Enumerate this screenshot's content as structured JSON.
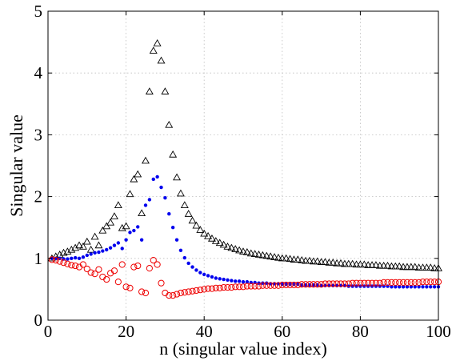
{
  "chart_data": {
    "type": "scatter",
    "title": "",
    "xlabel": "n (singular value index)",
    "ylabel": "Singular value",
    "xlim": [
      0,
      100
    ],
    "ylim": [
      0,
      5
    ],
    "xticks": [
      0,
      20,
      40,
      60,
      80,
      100
    ],
    "yticks": [
      0,
      1,
      2,
      3,
      4,
      5
    ],
    "grid": true,
    "series": [
      {
        "marker": "triangle",
        "color": "#000000",
        "x": [
          1,
          2,
          3,
          4,
          5,
          6,
          7,
          8,
          9,
          10,
          11,
          12,
          13,
          14,
          15,
          16,
          17,
          18,
          19,
          20,
          21,
          22,
          23,
          24,
          25,
          26,
          27,
          28,
          29,
          30,
          31,
          32,
          33,
          34,
          35,
          36,
          37,
          38,
          39,
          40,
          41,
          42,
          43,
          44,
          45,
          46,
          47,
          48,
          49,
          50,
          51,
          52,
          53,
          54,
          55,
          56,
          57,
          58,
          59,
          60,
          61,
          62,
          63,
          64,
          65,
          66,
          67,
          68,
          69,
          70,
          71,
          72,
          73,
          74,
          75,
          76,
          77,
          78,
          79,
          80,
          81,
          82,
          83,
          84,
          85,
          86,
          87,
          88,
          89,
          90,
          91,
          92,
          93,
          94,
          95,
          96,
          97,
          98,
          99,
          100
        ],
        "y": [
          1.0,
          1.03,
          1.06,
          1.09,
          1.11,
          1.14,
          1.17,
          1.21,
          1.19,
          1.27,
          1.14,
          1.35,
          1.21,
          1.45,
          1.52,
          1.58,
          1.68,
          1.86,
          1.49,
          1.52,
          2.04,
          2.28,
          2.36,
          1.73,
          2.58,
          3.7,
          4.36,
          4.48,
          4.2,
          3.7,
          3.16,
          2.68,
          2.31,
          2.05,
          1.86,
          1.72,
          1.61,
          1.53,
          1.46,
          1.4,
          1.36,
          1.32,
          1.28,
          1.25,
          1.22,
          1.19,
          1.17,
          1.15,
          1.13,
          1.11,
          1.1,
          1.08,
          1.07,
          1.06,
          1.05,
          1.04,
          1.03,
          1.02,
          1.01,
          1.0,
          1.0,
          0.99,
          0.98,
          0.98,
          0.97,
          0.96,
          0.96,
          0.95,
          0.95,
          0.94,
          0.94,
          0.93,
          0.93,
          0.92,
          0.92,
          0.91,
          0.91,
          0.91,
          0.9,
          0.9,
          0.9,
          0.89,
          0.89,
          0.89,
          0.88,
          0.88,
          0.88,
          0.87,
          0.87,
          0.87,
          0.86,
          0.86,
          0.86,
          0.86,
          0.85,
          0.85,
          0.85,
          0.85,
          0.84,
          0.84
        ]
      },
      {
        "marker": "dot",
        "color": "#0000ee",
        "x": [
          1,
          2,
          3,
          4,
          5,
          6,
          7,
          8,
          9,
          10,
          11,
          12,
          13,
          14,
          15,
          16,
          17,
          18,
          19,
          20,
          21,
          22,
          23,
          24,
          25,
          26,
          27,
          28,
          29,
          30,
          31,
          32,
          33,
          34,
          35,
          36,
          37,
          38,
          39,
          40,
          41,
          42,
          43,
          44,
          45,
          46,
          47,
          48,
          49,
          50,
          51,
          52,
          53,
          54,
          55,
          56,
          57,
          58,
          59,
          60,
          61,
          62,
          63,
          64,
          65,
          66,
          67,
          68,
          69,
          70,
          71,
          72,
          73,
          74,
          75,
          76,
          77,
          78,
          79,
          80,
          81,
          82,
          83,
          84,
          85,
          86,
          87,
          88,
          89,
          90,
          91,
          92,
          93,
          94,
          95,
          96,
          97,
          98,
          99,
          100
        ],
        "y": [
          1.0,
          1.0,
          1.0,
          0.99,
          0.99,
          1.0,
          1.01,
          1.0,
          1.02,
          1.05,
          1.07,
          1.09,
          1.1,
          1.12,
          1.14,
          1.17,
          1.21,
          1.25,
          1.16,
          1.3,
          1.42,
          1.45,
          1.51,
          1.3,
          1.86,
          1.95,
          2.28,
          2.32,
          2.15,
          1.98,
          1.72,
          1.5,
          1.3,
          1.13,
          1.01,
          0.92,
          0.86,
          0.81,
          0.77,
          0.74,
          0.72,
          0.7,
          0.68,
          0.67,
          0.66,
          0.65,
          0.64,
          0.63,
          0.63,
          0.62,
          0.62,
          0.61,
          0.61,
          0.6,
          0.6,
          0.6,
          0.59,
          0.59,
          0.59,
          0.58,
          0.58,
          0.58,
          0.58,
          0.58,
          0.57,
          0.57,
          0.57,
          0.57,
          0.57,
          0.56,
          0.56,
          0.56,
          0.56,
          0.56,
          0.56,
          0.56,
          0.55,
          0.55,
          0.55,
          0.55,
          0.55,
          0.55,
          0.55,
          0.55,
          0.55,
          0.55,
          0.55,
          0.54,
          0.54,
          0.54,
          0.54,
          0.54,
          0.54,
          0.54,
          0.54,
          0.54,
          0.54,
          0.54,
          0.54,
          0.54
        ]
      },
      {
        "marker": "circle",
        "color": "#ee0000",
        "x": [
          1,
          2,
          3,
          4,
          5,
          6,
          7,
          8,
          9,
          10,
          11,
          12,
          13,
          14,
          15,
          16,
          17,
          18,
          19,
          20,
          21,
          22,
          23,
          24,
          25,
          26,
          27,
          28,
          29,
          30,
          31,
          32,
          33,
          34,
          35,
          36,
          37,
          38,
          39,
          40,
          41,
          42,
          43,
          44,
          45,
          46,
          47,
          48,
          49,
          50,
          51,
          52,
          53,
          54,
          55,
          56,
          57,
          58,
          59,
          60,
          61,
          62,
          63,
          64,
          65,
          66,
          67,
          68,
          69,
          70,
          71,
          72,
          73,
          74,
          75,
          76,
          77,
          78,
          79,
          80,
          81,
          82,
          83,
          84,
          85,
          86,
          87,
          88,
          89,
          90,
          91,
          92,
          93,
          94,
          95,
          96,
          97,
          98,
          99,
          100
        ],
        "y": [
          0.98,
          0.97,
          0.95,
          0.93,
          0.91,
          0.89,
          0.88,
          0.86,
          0.9,
          0.83,
          0.77,
          0.75,
          0.82,
          0.7,
          0.66,
          0.76,
          0.8,
          0.62,
          0.9,
          0.54,
          0.52,
          0.86,
          0.88,
          0.46,
          0.44,
          0.84,
          0.97,
          0.9,
          0.6,
          0.44,
          0.4,
          0.4,
          0.42,
          0.44,
          0.45,
          0.46,
          0.47,
          0.48,
          0.49,
          0.5,
          0.51,
          0.51,
          0.52,
          0.52,
          0.53,
          0.53,
          0.53,
          0.54,
          0.54,
          0.54,
          0.55,
          0.55,
          0.55,
          0.55,
          0.56,
          0.56,
          0.56,
          0.56,
          0.56,
          0.57,
          0.57,
          0.57,
          0.57,
          0.57,
          0.58,
          0.58,
          0.58,
          0.58,
          0.58,
          0.58,
          0.59,
          0.59,
          0.59,
          0.59,
          0.59,
          0.59,
          0.59,
          0.6,
          0.6,
          0.6,
          0.6,
          0.6,
          0.6,
          0.6,
          0.6,
          0.61,
          0.61,
          0.61,
          0.61,
          0.61,
          0.61,
          0.61,
          0.61,
          0.61,
          0.61,
          0.62,
          0.62,
          0.62,
          0.62,
          0.62
        ]
      }
    ]
  }
}
